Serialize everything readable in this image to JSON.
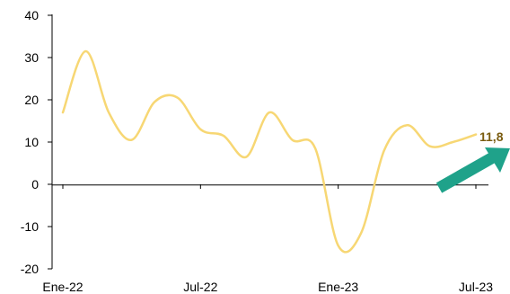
{
  "chart_data": {
    "type": "line",
    "title": "",
    "xlabel": "",
    "ylabel": "",
    "ylim": [
      -20,
      40
    ],
    "yticks": [
      -20,
      -10,
      0,
      10,
      20,
      30,
      40
    ],
    "ytick_labels": [
      "-20",
      "-10",
      "0",
      "10",
      "20",
      "30",
      "40"
    ],
    "xlim": [
      0,
      18
    ],
    "xticks": [
      0,
      6,
      12,
      18
    ],
    "xtick_labels": [
      "Ene-22",
      "Jul-22",
      "Ene-23",
      "Jul-23"
    ],
    "grid": false,
    "legend": "none",
    "series": [
      {
        "color": "#F7D774",
        "x": [
          "Ene-22",
          "Feb-22",
          "Mar-22",
          "Abr-22",
          "May-22",
          "Jun-22",
          "Jul-22",
          "Ago-22",
          "Sep-22",
          "Oct-22",
          "Nov-22",
          "Dic-22",
          "Ene-23",
          "Feb-23",
          "Mar-23",
          "Abr-23",
          "May-23",
          "Jun-23",
          "Jul-23"
        ],
        "values": [
          17,
          31.5,
          17,
          10.5,
          19.5,
          20.5,
          13,
          11.5,
          6.5,
          17,
          10.5,
          8.5,
          -14.5,
          -11.5,
          8,
          14,
          9,
          10,
          11.8
        ]
      }
    ],
    "annotation": {
      "text": "11,8",
      "color": "#7A5C10",
      "arrow_color": "#1FA28A"
    }
  }
}
